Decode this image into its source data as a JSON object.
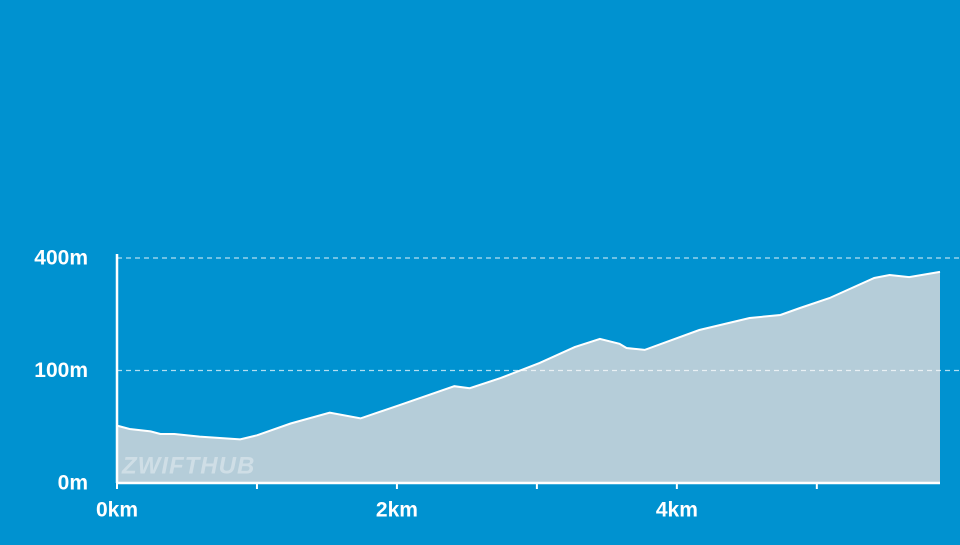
{
  "chart_data": {
    "type": "area",
    "watermark": "ZWIFTHUB",
    "x": [
      0,
      0.09,
      0.24,
      0.31,
      0.41,
      0.59,
      0.88,
      1.0,
      1.24,
      1.52,
      1.74,
      2.02,
      2.41,
      2.52,
      2.74,
      3.02,
      3.27,
      3.45,
      3.59,
      3.64,
      3.77,
      4.16,
      4.52,
      4.74,
      4.88,
      5.09,
      5.41,
      5.52,
      5.66,
      5.88
    ],
    "values": [
      26,
      23,
      21,
      19,
      19,
      17,
      15,
      18,
      28,
      39,
      33,
      48,
      74,
      71,
      87,
      114,
      146,
      164,
      153,
      144,
      140,
      185,
      215,
      223,
      242,
      270,
      332,
      342,
      335,
      352
    ],
    "color": "#b5cdd9",
    "line_color": "#ffffff",
    "xlim": [
      0,
      5.88
    ],
    "xticks": [
      {
        "value": 0,
        "label": "0km"
      },
      {
        "value": 2,
        "label": "2km"
      },
      {
        "value": 4,
        "label": "4km"
      }
    ],
    "xminor_ticks": [
      1,
      3,
      5
    ],
    "ylim": [
      0,
      400
    ],
    "yscale": "sqrt",
    "yticks": [
      {
        "value": 0,
        "label": "0m"
      },
      {
        "value": 100,
        "label": "100m"
      },
      {
        "value": 400,
        "label": "400m"
      }
    ],
    "grid": true
  }
}
